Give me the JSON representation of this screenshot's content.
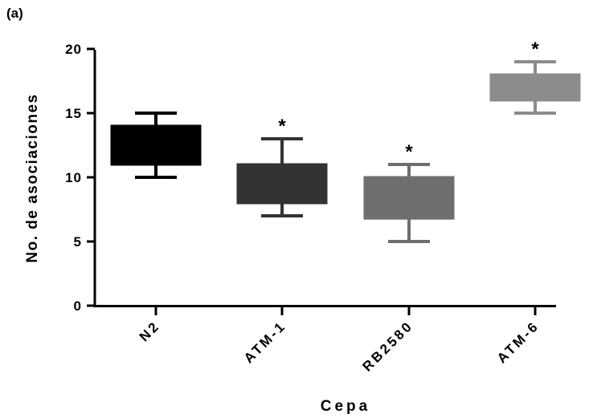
{
  "chart_data": {
    "type": "box",
    "panel_label": "(a)",
    "xlabel": "Cepa",
    "ylabel": "No. de asociaciones",
    "ylim": [
      0,
      20
    ],
    "yticks": [
      0,
      5,
      10,
      15,
      20
    ],
    "grid": false,
    "categories": [
      "N2",
      "ATM-1",
      "RB2580",
      "ATM-6"
    ],
    "boxes": [
      {
        "name": "N2",
        "min": 10,
        "q1": 11,
        "median": 12,
        "q3": 14,
        "max": 15,
        "color": "#000000",
        "annotation": ""
      },
      {
        "name": "ATM-1",
        "min": 7,
        "q1": 8,
        "median": 10,
        "q3": 11,
        "max": 13,
        "color": "#333333",
        "annotation": "*"
      },
      {
        "name": "RB2580",
        "min": 5,
        "q1": 6.8,
        "median": 9,
        "q3": 10,
        "max": 11,
        "color": "#6e6e6e",
        "annotation": "*"
      },
      {
        "name": "ATM-6",
        "min": 15,
        "q1": 16,
        "median": 17,
        "q3": 18,
        "max": 19,
        "color": "#8c8c8c",
        "annotation": "*"
      }
    ]
  }
}
